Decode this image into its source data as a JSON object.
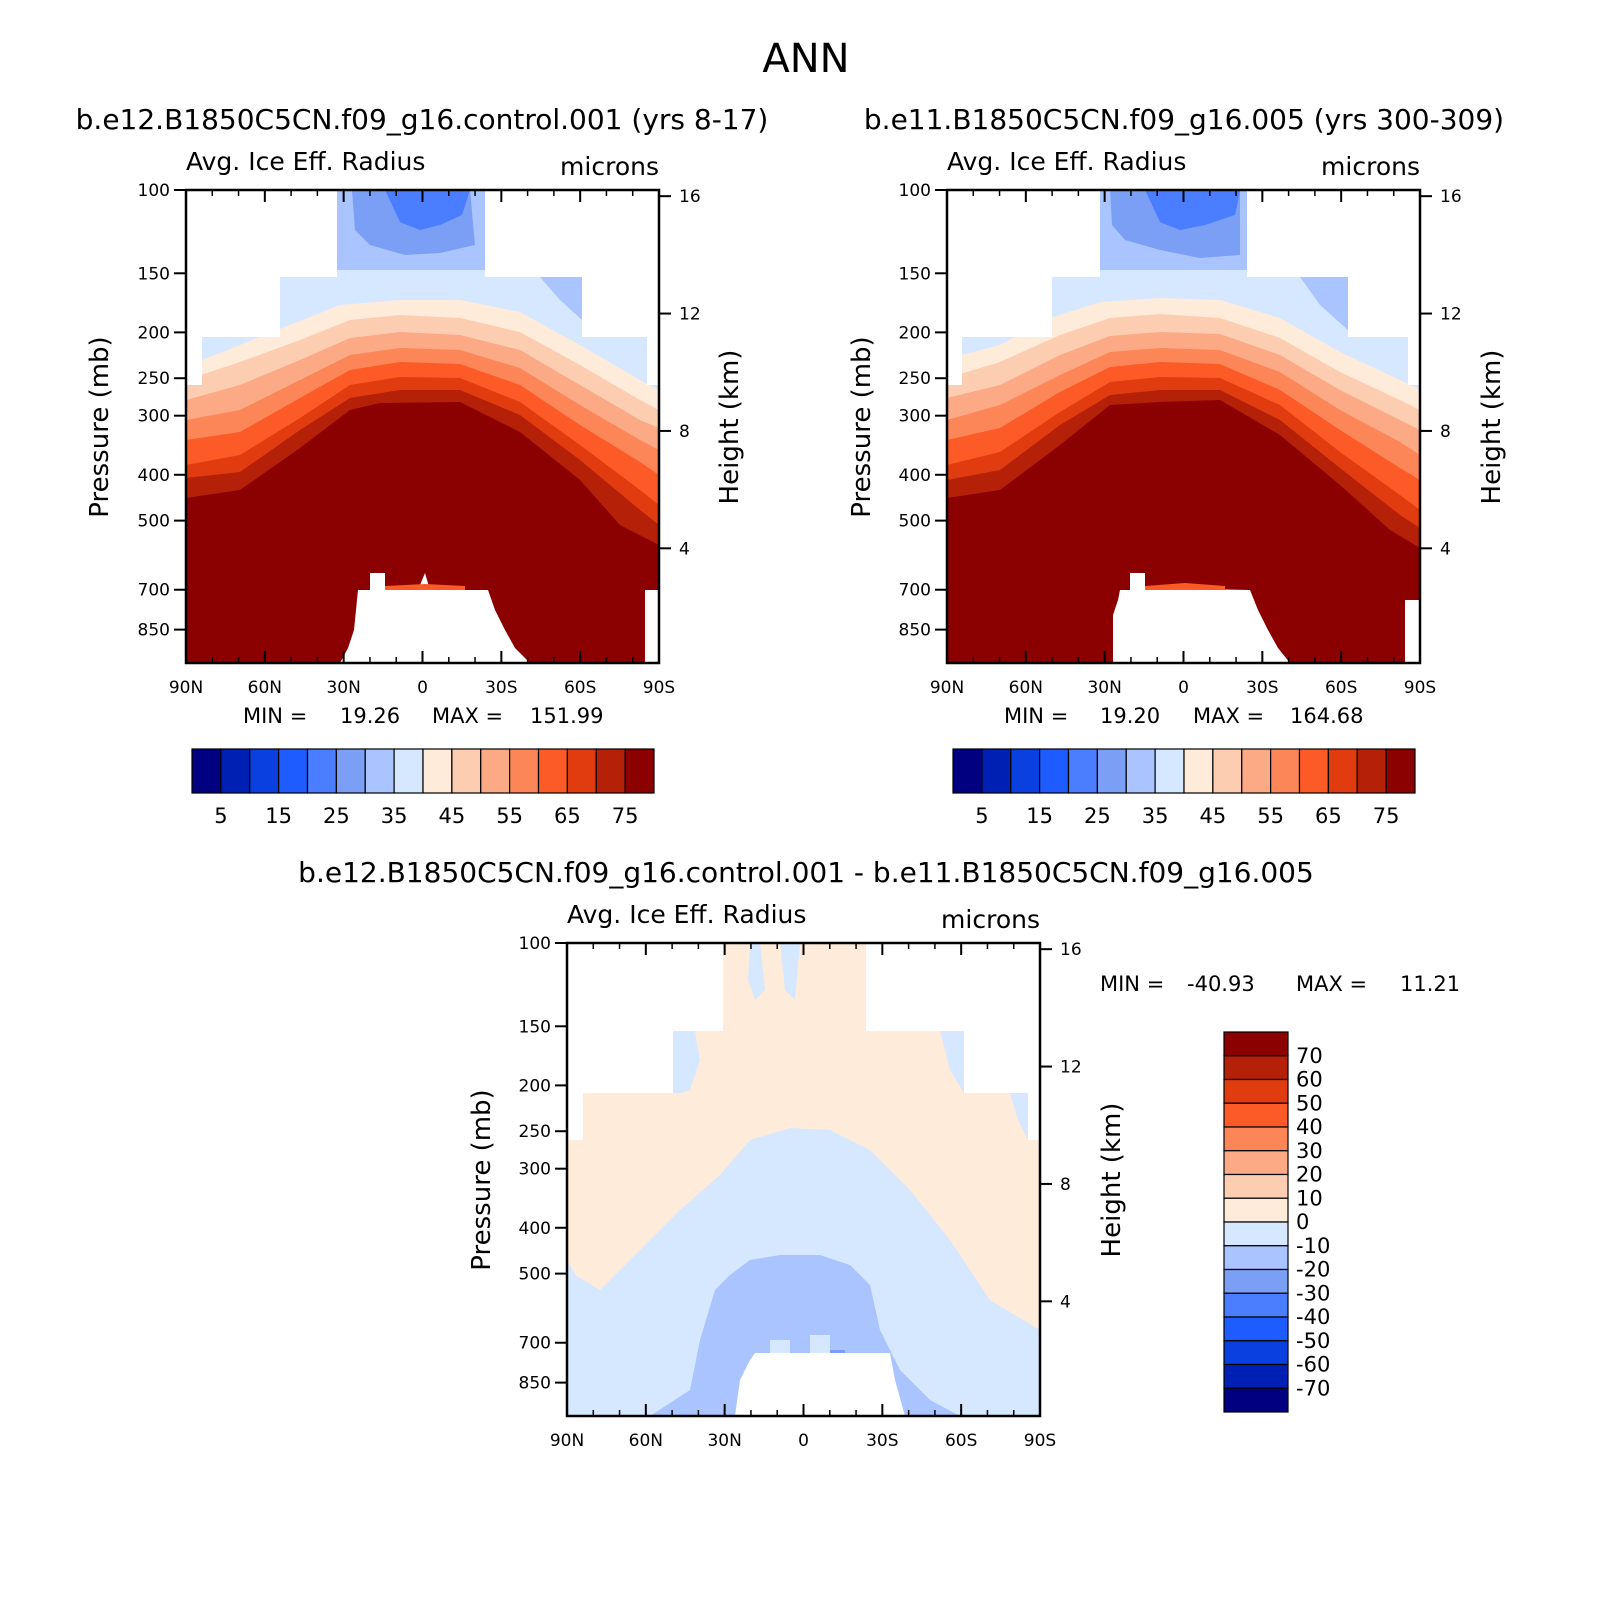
{
  "title": "ANN",
  "colors": {
    "seq": [
      "#000080",
      "#0020b4",
      "#0a3fe0",
      "#1e5cff",
      "#4a7dff",
      "#7a9ff5",
      "#a9c4ff",
      "#d6e8ff",
      "#ffebd9",
      "#fdcdb2",
      "#fca985",
      "#fc8658",
      "#fc5a26",
      "#e03c10",
      "#b42008",
      "#8b0000"
    ],
    "diff": [
      "#000080",
      "#0020b4",
      "#0a3fe0",
      "#1e5cff",
      "#4a7dff",
      "#7a9ff5",
      "#a9c4ff",
      "#d6e8ff",
      "#ffebd9",
      "#fdcdb2",
      "#fca985",
      "#fc8658",
      "#fc5a26",
      "#e03c10",
      "#b42008",
      "#8b0000"
    ]
  },
  "chart_data": [
    {
      "type": "heatmap",
      "panel": "top-left",
      "case_title": "b.e12.B1850C5CN.f09_g16.control.001 (yrs 8-17)",
      "var_title": "Avg. Ice Eff. Radius",
      "units": "microns",
      "ylabel": "Pressure (mb)",
      "y2label": "Height (km)",
      "x_ticks": [
        "90N",
        "60N",
        "30N",
        "0",
        "30S",
        "60S",
        "90S"
      ],
      "y_ticks": [
        "100",
        "150",
        "200",
        "250",
        "300",
        "400",
        "500",
        "700",
        "850"
      ],
      "y2_ticks": [
        "16",
        "12",
        "8",
        "4"
      ],
      "min_label": "MIN =",
      "min_value": "19.26",
      "max_label": "MAX =",
      "max_value": "151.99",
      "colorbar_labels": [
        "5",
        "15",
        "25",
        "35",
        "45",
        "55",
        "65",
        "75"
      ],
      "contour_levels": [
        5,
        10,
        15,
        20,
        25,
        30,
        35,
        40,
        45,
        50,
        55,
        60,
        65,
        70,
        75
      ]
    },
    {
      "type": "heatmap",
      "panel": "top-right",
      "case_title": "b.e11.B1850C5CN.f09_g16.005 (yrs 300-309)",
      "var_title": "Avg. Ice Eff. Radius",
      "units": "microns",
      "ylabel": "Pressure (mb)",
      "y2label": "Height (km)",
      "x_ticks": [
        "90N",
        "60N",
        "30N",
        "0",
        "30S",
        "60S",
        "90S"
      ],
      "y_ticks": [
        "100",
        "150",
        "200",
        "250",
        "300",
        "400",
        "500",
        "700",
        "850"
      ],
      "y2_ticks": [
        "16",
        "12",
        "8",
        "4"
      ],
      "min_label": "MIN =",
      "min_value": "19.20",
      "max_label": "MAX =",
      "max_value": "164.68",
      "colorbar_labels": [
        "5",
        "15",
        "25",
        "35",
        "45",
        "55",
        "65",
        "75"
      ],
      "contour_levels": [
        5,
        10,
        15,
        20,
        25,
        30,
        35,
        40,
        45,
        50,
        55,
        60,
        65,
        70,
        75
      ]
    },
    {
      "type": "heatmap",
      "panel": "bottom",
      "case_title": "b.e12.B1850C5CN.f09_g16.control.001 - b.e11.B1850C5CN.f09_g16.005",
      "var_title": "Avg. Ice Eff. Radius",
      "units": "microns",
      "ylabel": "Pressure (mb)",
      "y2label": "Height (km)",
      "x_ticks": [
        "90N",
        "60N",
        "30N",
        "0",
        "30S",
        "60S",
        "90S"
      ],
      "y_ticks": [
        "100",
        "150",
        "200",
        "250",
        "300",
        "400",
        "500",
        "700",
        "850"
      ],
      "y2_ticks": [
        "16",
        "12",
        "8",
        "4"
      ],
      "min_label": "MIN =",
      "min_value": "-40.93",
      "max_label": "MAX =",
      "max_value": "11.21",
      "colorbar_labels": [
        "70",
        "60",
        "50",
        "40",
        "30",
        "20",
        "10",
        "0",
        "-10",
        "-20",
        "-30",
        "-40",
        "-50",
        "-60",
        "-70"
      ],
      "contour_levels": [
        -70,
        -60,
        -50,
        -40,
        -30,
        -20,
        -10,
        0,
        10,
        20,
        30,
        40,
        50,
        60,
        70
      ]
    }
  ]
}
